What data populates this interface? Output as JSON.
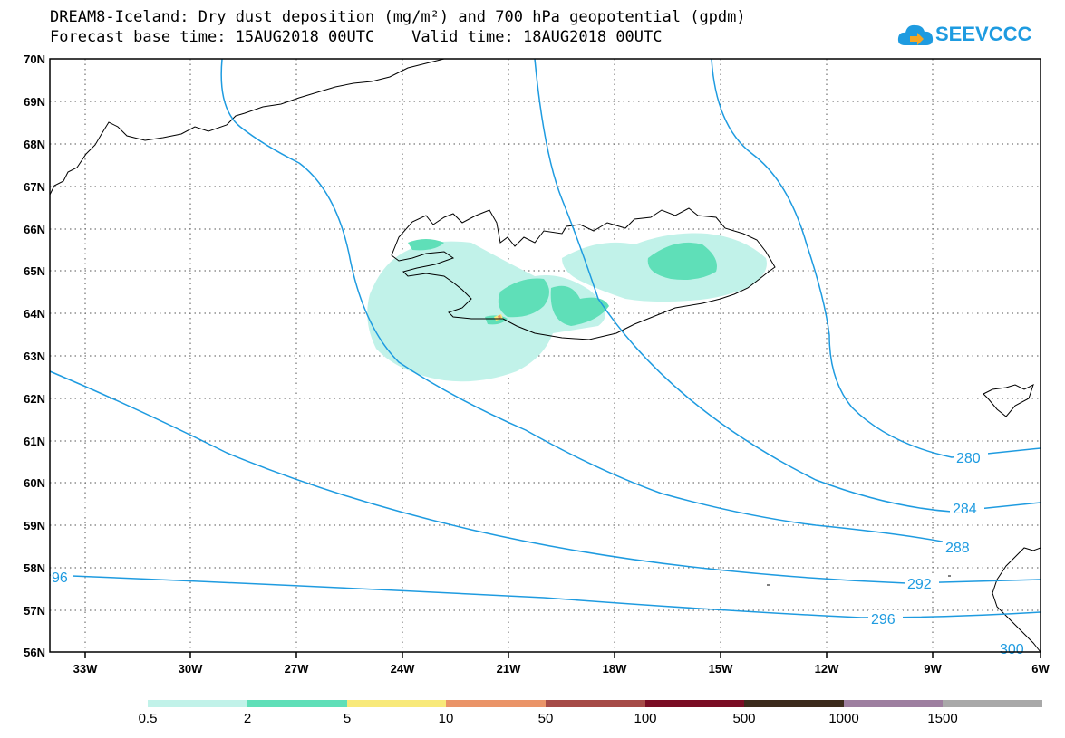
{
  "title": {
    "line1": "DREAM8-Iceland: Dry dust deposition (mg/m²) and 700 hPa geopotential (gpdm)",
    "line2": "Forecast base time: 15AUG2018 00UTC    Valid time: 18AUG2018 00UTC"
  },
  "logo": {
    "text": "SEEVCCC",
    "icon": "cloud-arrow-icon",
    "color": "#1e9be0"
  },
  "axes": {
    "lat_labels": [
      "70N",
      "69N",
      "68N",
      "67N",
      "66N",
      "65N",
      "64N",
      "63N",
      "62N",
      "61N",
      "60N",
      "59N",
      "58N",
      "57N",
      "56N"
    ],
    "lon_labels": [
      "33W",
      "30W",
      "27W",
      "24W",
      "21W",
      "18W",
      "15W",
      "12W",
      "9W",
      "6W"
    ]
  },
  "contours": {
    "color": "#1e9be0",
    "labels": [
      "280",
      "284",
      "288",
      "292",
      "296",
      "96",
      "300"
    ]
  },
  "legend": {
    "labels": [
      "0.5",
      "2",
      "5",
      "10",
      "50",
      "100",
      "500",
      "1000",
      "1500"
    ],
    "colors": [
      "#c1f2e9",
      "#5fdfb8",
      "#f8e97a",
      "#ea9468",
      "#a64b48",
      "#7a0d24",
      "#3c2b1c",
      "#9e7fa0",
      "#a9a9a9"
    ]
  }
}
